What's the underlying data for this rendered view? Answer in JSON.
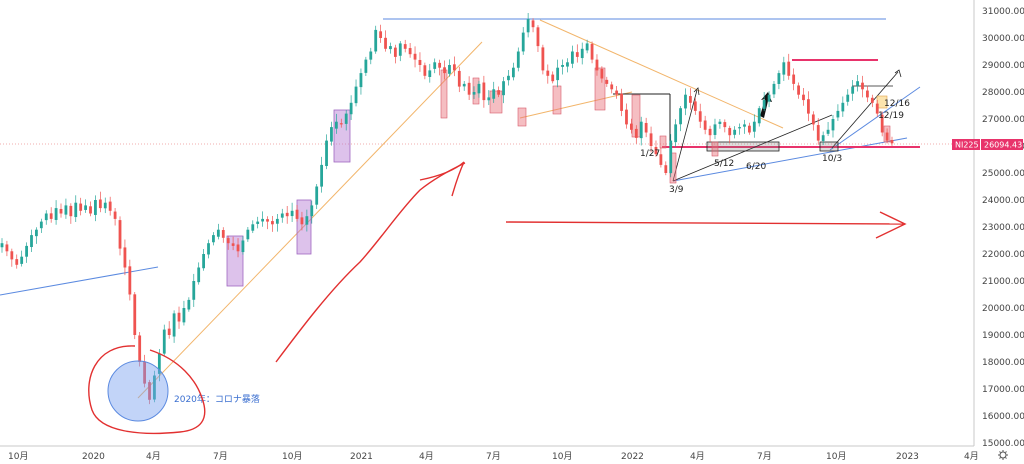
{
  "chart_data": {
    "type": "candlestick",
    "title": "",
    "symbol": "NI225",
    "last_price": "26094.43",
    "y_ticks": [
      "31000.00",
      "30000.00",
      "29000.00",
      "28000.00",
      "27000.00",
      "26000.00",
      "25000.00",
      "24000.00",
      "23000.00",
      "22000.00",
      "21000.00",
      "20000.00",
      "19000.00",
      "18000.00",
      "17000.00",
      "16000.00",
      "15000.00"
    ],
    "x_ticks": [
      "10月",
      "2020",
      "4月",
      "7月",
      "10月",
      "2021",
      "4月",
      "7月",
      "10月",
      "2022",
      "4月",
      "7月",
      "10月",
      "2023",
      "4月"
    ],
    "ylim": [
      15000,
      31500
    ],
    "annotations": {
      "corona_label": "2020年：コロナ暴落",
      "dates": [
        "1/27",
        "3/9",
        "5/12",
        "6/20",
        "10/3",
        "12/16",
        "12/19"
      ]
    },
    "series": [
      {
        "values": [
          22400,
          22100,
          21800,
          21600,
          21900,
          22300,
          22700,
          22900,
          23200,
          23500,
          23300,
          23700,
          23500,
          23800,
          23400,
          23900,
          23600,
          23800,
          23500,
          24000,
          23700,
          23900,
          23600,
          23300,
          22200,
          21500,
          20500,
          19000,
          18000,
          17200,
          16600,
          17500,
          18300,
          19200,
          19000,
          19800,
          19500,
          20000,
          20300,
          21000,
          21500,
          22000,
          22400,
          22700,
          22900,
          22600,
          22400,
          22300,
          22100,
          22500,
          22900,
          23100,
          23200,
          23300,
          23200,
          23100,
          23300,
          23500,
          23400,
          23600,
          23300,
          23100,
          23400,
          23800,
          24500,
          25300,
          26200,
          26700,
          26900,
          26800,
          27200,
          27600,
          28200,
          28700,
          29200,
          29500,
          30300,
          30000,
          29600,
          29700,
          29300,
          29800,
          29600,
          29400,
          29200,
          29000,
          28600,
          28800,
          29100,
          28900,
          28700,
          29000,
          28800,
          28200,
          28300,
          27900,
          28000,
          28300,
          27700,
          27800,
          28100,
          27900,
          28400,
          28600,
          28900,
          29500,
          30200,
          30700,
          30400,
          29700,
          28800,
          28600,
          28400,
          28900,
          29000,
          29100,
          29500,
          29300,
          29600,
          29800,
          29200,
          28800,
          28500,
          28300,
          28100,
          27900,
          27300,
          26800,
          26600,
          26300,
          26900,
          26500,
          26000,
          25700,
          25300,
          25000,
          26200,
          26800,
          27400,
          27900,
          27600,
          27300,
          26900,
          26600,
          26400,
          26800,
          26900,
          26700,
          26400,
          26600,
          26700,
          26800,
          26500,
          26900,
          27400,
          27700,
          27900,
          28300,
          28700,
          29100,
          28600,
          28300,
          27900,
          27700,
          27200,
          26800,
          26200,
          26400,
          26600,
          27000,
          27300,
          27600,
          27900,
          28200,
          28400,
          28100,
          27800,
          27600,
          27200,
          26500,
          26200,
          26100
        ]
      }
    ]
  }
}
